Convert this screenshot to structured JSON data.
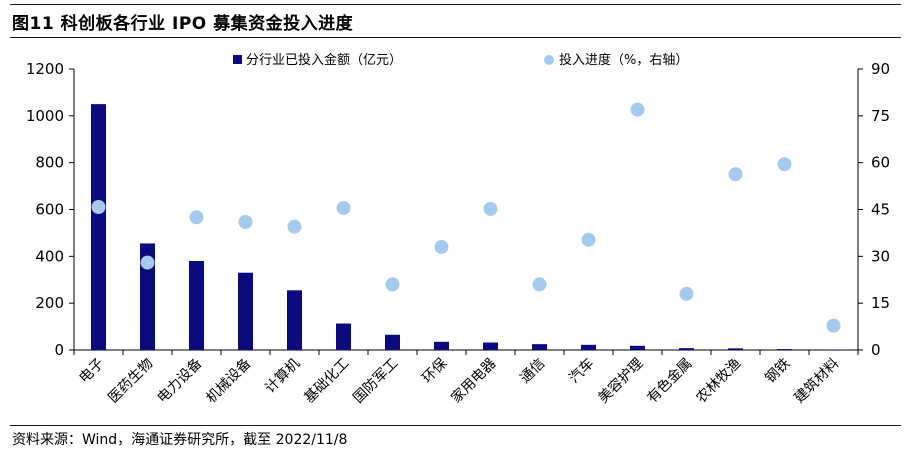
{
  "header": {
    "title": "图11 科创板各行业 IPO 募集资金投入进度"
  },
  "footer": {
    "source": "资料来源：Wind，海通证券研究所，截至 2022/11/8"
  },
  "chart_data": {
    "type": "bar+scatter",
    "categories": [
      "电子",
      "医药生物",
      "电力设备",
      "机械设备",
      "计算机",
      "基础化工",
      "国防军工",
      "环保",
      "家用电器",
      "通信",
      "汽车",
      "美容护理",
      "有色金属",
      "农林牧渔",
      "钢铁",
      "建筑材料"
    ],
    "series": [
      {
        "name": "分行业已投入金额（亿元）",
        "type": "bar",
        "axis": "left",
        "color": "#0b0b7f",
        "values": [
          1050,
          455,
          380,
          330,
          255,
          113,
          65,
          35,
          32,
          25,
          22,
          18,
          8,
          7,
          4,
          1
        ]
      },
      {
        "name": "投入进度（%，右轴）",
        "type": "scatter",
        "axis": "right",
        "color": "#a6caed",
        "values": [
          45.8,
          28.0,
          42.5,
          41.0,
          39.5,
          45.5,
          21.0,
          33.0,
          45.2,
          21.0,
          35.3,
          77.0,
          18.0,
          56.3,
          59.5,
          7.8
        ]
      }
    ],
    "y_left": {
      "min": 0,
      "max": 1200,
      "ticks": [
        "0",
        "200",
        "400",
        "600",
        "800",
        "1000",
        "1200"
      ]
    },
    "y_right": {
      "min": 0,
      "max": 90,
      "ticks": [
        "0",
        "15",
        "30",
        "45",
        "60",
        "75",
        "90"
      ]
    },
    "legend_position": "top",
    "grid": false
  }
}
